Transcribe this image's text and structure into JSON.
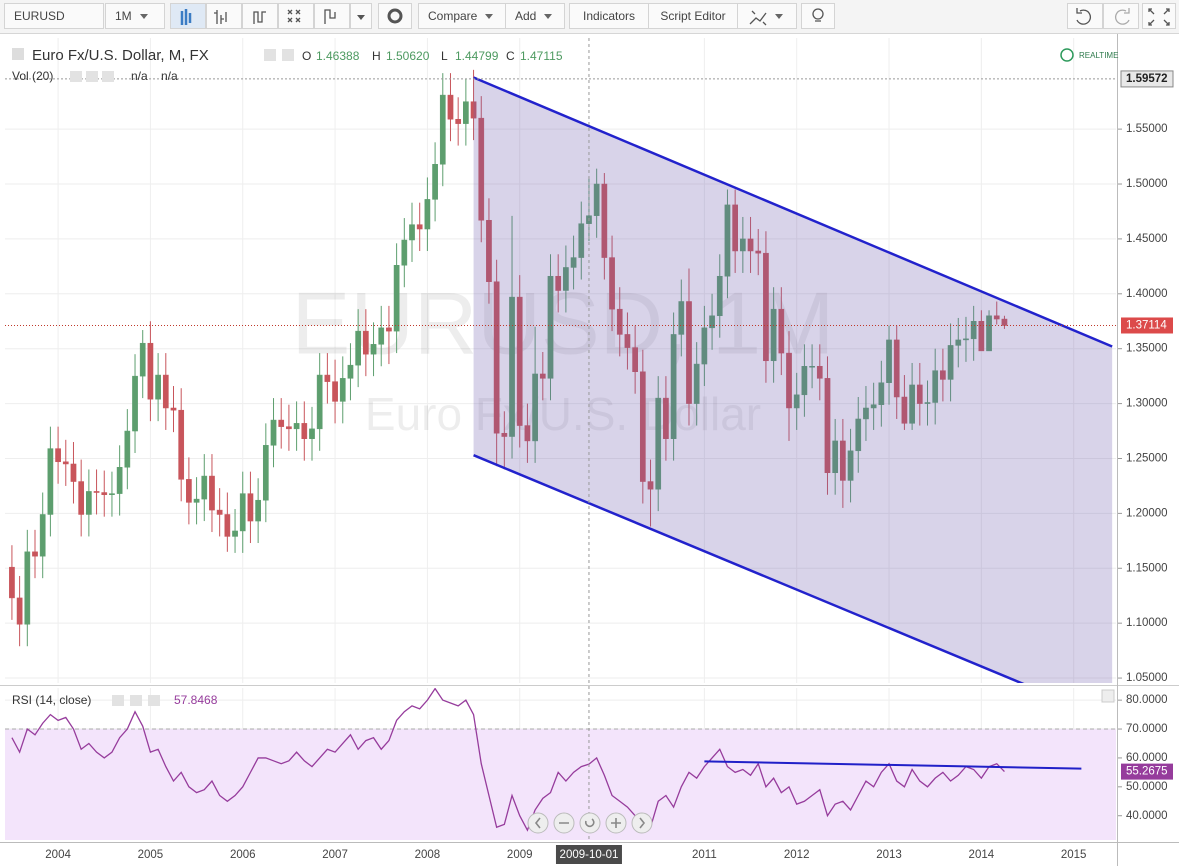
{
  "toolbar": {
    "symbol": "EURUSD",
    "interval": "1M",
    "buttons": [
      "Compare",
      "Add",
      "Indicators",
      "Script Editor"
    ]
  },
  "chart_data": [
    {
      "type": "candlestick",
      "title": "Euro Fx/U.S. Dollar, M, FX",
      "watermark": "EURUSD, 1M",
      "watermark_subtitle": "Euro Fx/U.S. Dollar",
      "legend_labels": {
        "open": "O",
        "high": "H",
        "low": "L",
        "close": "C"
      },
      "ohlc_labels": {
        "open": "1.46388",
        "high": "1.50620",
        "low": "1.44799",
        "close": "1.47115"
      },
      "volume_label": "Vol (20)",
      "volume_values": [
        "n/a",
        "n/a"
      ],
      "realtime": "REALTIME",
      "up_color": "#5d9e6e",
      "down_color": "#c8555b",
      "open": [
        1.151,
        1.123,
        1.099,
        1.165,
        1.161,
        1.199,
        1.259,
        1.247,
        1.245,
        1.229,
        1.199,
        1.22,
        1.219,
        1.217,
        1.218,
        1.242,
        1.275,
        1.325,
        1.355,
        1.304,
        1.326,
        1.296,
        1.294,
        1.231,
        1.21,
        1.213,
        1.234,
        1.203,
        1.199,
        1.179,
        1.184,
        1.218,
        1.193,
        1.212,
        1.262,
        1.285,
        1.279,
        1.277,
        1.282,
        1.268,
        1.277,
        1.326,
        1.32,
        1.302,
        1.323,
        1.335,
        1.366,
        1.345,
        1.354,
        1.369,
        1.366,
        1.426,
        1.449,
        1.463,
        1.459,
        1.486,
        1.518,
        1.581,
        1.559,
        1.555,
        1.575,
        1.56,
        1.467,
        1.411,
        1.273,
        1.27,
        1.397,
        1.28,
        1.266,
        1.327,
        1.323,
        1.416,
        1.403,
        1.424,
        1.433,
        1.46388,
        1.47115,
        1.5,
        1.433,
        1.386,
        1.363,
        1.351,
        1.329,
        1.229,
        1.222,
        1.305,
        1.268,
        1.363,
        1.393,
        1.3,
        1.336,
        1.369,
        1.38,
        1.416,
        1.481,
        1.439,
        1.45,
        1.439,
        1.437,
        1.339,
        1.386,
        1.346,
        1.296,
        1.308,
        1.334,
        1.334,
        1.323,
        1.237,
        1.266,
        1.23,
        1.257,
        1.286,
        1.296,
        1.299,
        1.319,
        1.358,
        1.306,
        1.282,
        1.317,
        1.3,
        1.301,
        1.33,
        1.322,
        1.353,
        1.358,
        1.359,
        1.375,
        1.348,
        1.38,
        1.377
      ],
      "high": [
        1.171,
        1.143,
        1.185,
        1.185,
        1.219,
        1.279,
        1.279,
        1.267,
        1.265,
        1.249,
        1.24,
        1.24,
        1.239,
        1.238,
        1.262,
        1.295,
        1.345,
        1.367,
        1.375,
        1.346,
        1.346,
        1.316,
        1.314,
        1.251,
        1.233,
        1.254,
        1.254,
        1.223,
        1.219,
        1.204,
        1.238,
        1.238,
        1.232,
        1.282,
        1.305,
        1.305,
        1.299,
        1.302,
        1.302,
        1.297,
        1.346,
        1.346,
        1.34,
        1.343,
        1.355,
        1.386,
        1.386,
        1.374,
        1.389,
        1.389,
        1.446,
        1.469,
        1.483,
        1.483,
        1.506,
        1.538,
        1.601,
        1.601,
        1.579,
        1.596,
        1.604,
        1.58,
        1.487,
        1.431,
        1.293,
        1.471,
        1.417,
        1.3,
        1.37,
        1.347,
        1.436,
        1.436,
        1.444,
        1.453,
        1.484,
        1.5062,
        1.514,
        1.51,
        1.453,
        1.406,
        1.383,
        1.371,
        1.349,
        1.249,
        1.325,
        1.325,
        1.383,
        1.413,
        1.423,
        1.356,
        1.389,
        1.4,
        1.436,
        1.495,
        1.495,
        1.47,
        1.47,
        1.459,
        1.457,
        1.406,
        1.406,
        1.366,
        1.328,
        1.354,
        1.354,
        1.354,
        1.343,
        1.286,
        1.286,
        1.277,
        1.306,
        1.316,
        1.319,
        1.339,
        1.371,
        1.371,
        1.326,
        1.337,
        1.337,
        1.321,
        1.35,
        1.35,
        1.373,
        1.378,
        1.379,
        1.389,
        1.385,
        1.385,
        1.393,
        1.38
      ],
      "low": [
        1.103,
        1.079,
        1.079,
        1.141,
        1.141,
        1.179,
        1.227,
        1.225,
        1.209,
        1.179,
        1.179,
        1.199,
        1.197,
        1.197,
        1.198,
        1.222,
        1.255,
        1.305,
        1.284,
        1.284,
        1.276,
        1.274,
        1.211,
        1.19,
        1.19,
        1.193,
        1.183,
        1.179,
        1.165,
        1.164,
        1.164,
        1.173,
        1.173,
        1.192,
        1.242,
        1.259,
        1.257,
        1.257,
        1.248,
        1.248,
        1.257,
        1.3,
        1.282,
        1.282,
        1.303,
        1.315,
        1.325,
        1.325,
        1.334,
        1.336,
        1.346,
        1.406,
        1.429,
        1.439,
        1.439,
        1.466,
        1.498,
        1.539,
        1.535,
        1.535,
        1.54,
        1.447,
        1.391,
        1.243,
        1.24,
        1.25,
        1.26,
        1.246,
        1.246,
        1.303,
        1.303,
        1.383,
        1.383,
        1.404,
        1.413,
        1.44799,
        1.451,
        1.413,
        1.366,
        1.343,
        1.331,
        1.309,
        1.209,
        1.188,
        1.202,
        1.248,
        1.248,
        1.343,
        1.28,
        1.28,
        1.316,
        1.349,
        1.36,
        1.396,
        1.419,
        1.419,
        1.419,
        1.417,
        1.319,
        1.319,
        1.326,
        1.266,
        1.276,
        1.288,
        1.314,
        1.303,
        1.217,
        1.217,
        1.205,
        1.21,
        1.237,
        1.266,
        1.276,
        1.279,
        1.299,
        1.286,
        1.276,
        1.276,
        1.28,
        1.28,
        1.281,
        1.302,
        1.302,
        1.333,
        1.338,
        1.339,
        1.348,
        1.348,
        1.372,
        1.368
      ],
      "close": [
        1.123,
        1.099,
        1.165,
        1.161,
        1.199,
        1.259,
        1.247,
        1.245,
        1.229,
        1.199,
        1.22,
        1.219,
        1.217,
        1.218,
        1.242,
        1.275,
        1.325,
        1.355,
        1.304,
        1.326,
        1.296,
        1.294,
        1.231,
        1.21,
        1.213,
        1.234,
        1.203,
        1.199,
        1.179,
        1.184,
        1.218,
        1.193,
        1.212,
        1.262,
        1.285,
        1.279,
        1.277,
        1.282,
        1.268,
        1.277,
        1.326,
        1.32,
        1.302,
        1.323,
        1.335,
        1.366,
        1.345,
        1.354,
        1.369,
        1.366,
        1.426,
        1.449,
        1.463,
        1.459,
        1.486,
        1.518,
        1.581,
        1.559,
        1.555,
        1.575,
        1.56,
        1.467,
        1.411,
        1.273,
        1.27,
        1.397,
        1.28,
        1.266,
        1.327,
        1.323,
        1.416,
        1.403,
        1.424,
        1.433,
        1.46388,
        1.47115,
        1.5,
        1.433,
        1.386,
        1.363,
        1.351,
        1.329,
        1.229,
        1.222,
        1.305,
        1.268,
        1.363,
        1.393,
        1.3,
        1.336,
        1.369,
        1.38,
        1.416,
        1.481,
        1.439,
        1.45,
        1.439,
        1.437,
        1.339,
        1.386,
        1.346,
        1.296,
        1.308,
        1.334,
        1.334,
        1.323,
        1.237,
        1.266,
        1.23,
        1.257,
        1.286,
        1.296,
        1.299,
        1.319,
        1.358,
        1.306,
        1.282,
        1.317,
        1.3,
        1.301,
        1.33,
        1.322,
        1.353,
        1.358,
        1.359,
        1.375,
        1.348,
        1.38,
        1.377,
        1.37114
      ],
      "xlim": [
        -0.9,
        143.5
      ],
      "xticks": [
        {
          "value": 6,
          "label": "2004"
        },
        {
          "value": 18,
          "label": "2005"
        },
        {
          "value": 30,
          "label": "2006"
        },
        {
          "value": 42,
          "label": "2007"
        },
        {
          "value": 54,
          "label": "2008"
        },
        {
          "value": 66,
          "label": "2009"
        },
        {
          "value": 90,
          "label": "2011"
        },
        {
          "value": 102,
          "label": "2012"
        },
        {
          "value": 114,
          "label": "2013"
        },
        {
          "value": 126,
          "label": "2014"
        },
        {
          "value": 138,
          "label": "2015"
        }
      ],
      "ylim": [
        1.0455,
        1.633
      ],
      "yticks": [
        {
          "value": 1.05,
          "label": "1.05000"
        },
        {
          "value": 1.1,
          "label": "1.10000"
        },
        {
          "value": 1.15,
          "label": "1.15000"
        },
        {
          "value": 1.2,
          "label": "1.20000"
        },
        {
          "value": 1.25,
          "label": "1.25000"
        },
        {
          "value": 1.3,
          "label": "1.30000"
        },
        {
          "value": 1.35,
          "label": "1.35000"
        },
        {
          "value": 1.4,
          "label": "1.40000"
        },
        {
          "value": 1.45,
          "label": "1.45000"
        },
        {
          "value": 1.5,
          "label": "1.50000"
        },
        {
          "value": 1.55,
          "label": "1.55000"
        }
      ],
      "grid": true,
      "last_price": 1.37114,
      "price_line": 1.59572,
      "crosshair": {
        "x": 75,
        "label": "2009-10-01"
      },
      "channel": {
        "color": "#2222cc",
        "upper": {
          "x": [
            60,
            143
          ],
          "y": [
            1.597,
            1.352
          ]
        },
        "lower": {
          "x": [
            60,
            143
          ],
          "y": [
            1.253,
            1.011
          ]
        }
      }
    },
    {
      "type": "line",
      "title": "RSI (14, close)",
      "color": "#963c9c",
      "values": [
        67,
        62,
        70,
        68,
        72,
        75,
        73,
        74,
        70,
        63,
        65,
        62,
        60,
        62,
        67,
        70,
        76,
        71,
        62,
        63,
        57,
        52,
        55,
        50,
        48,
        49,
        52,
        47,
        45,
        47,
        50,
        55,
        60,
        60,
        59,
        58,
        59,
        62,
        59,
        57,
        60,
        63,
        62,
        65,
        68,
        63,
        66,
        67,
        63,
        66,
        73,
        76,
        78,
        77,
        80,
        84,
        80,
        79,
        78,
        80,
        75,
        58,
        47,
        36,
        37,
        47,
        40,
        35,
        42,
        46,
        48,
        55,
        52,
        55,
        57,
        57.8468,
        60,
        54,
        47,
        45,
        43,
        40,
        37,
        36,
        45,
        47,
        43,
        50,
        55,
        53,
        57,
        60,
        63,
        57,
        55,
        56,
        54,
        58,
        50,
        53,
        48,
        50,
        44,
        45,
        47,
        49,
        40,
        44,
        45,
        42,
        47,
        52,
        50,
        55,
        58,
        52,
        50,
        56,
        52,
        50,
        53,
        55,
        52,
        54,
        57,
        56,
        53,
        57,
        58,
        55.2675
      ],
      "ylim": [
        31.6,
        84.2
      ],
      "yticks": [
        {
          "value": 40,
          "label": "40.0000"
        },
        {
          "value": 50,
          "label": "50.0000"
        },
        {
          "value": 60,
          "label": "60.0000"
        },
        {
          "value": 70,
          "label": "70.0000"
        },
        {
          "value": 80,
          "label": "80.0000"
        }
      ],
      "band": [
        30,
        70
      ],
      "trendline": {
        "color": "#2020c8",
        "x": [
          90,
          139
        ],
        "y": [
          58.8,
          56.3
        ]
      }
    }
  ]
}
